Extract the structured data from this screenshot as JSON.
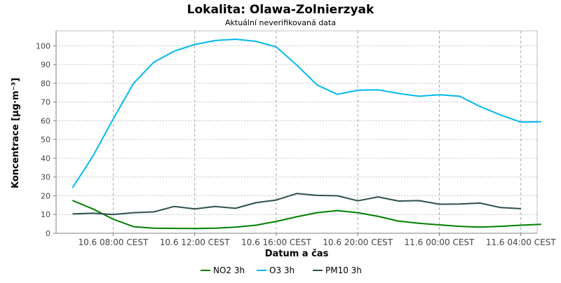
{
  "chart_data": {
    "type": "line",
    "title": "Lokalita: Olawa-Zolnierzyak",
    "subtitle": "Aktuální neverifikovaná data",
    "xlabel": "Datum a čas",
    "ylabel": "Koncentrace [µg·m⁻³]",
    "ylim": [
      0,
      108
    ],
    "yticks": [
      0,
      10,
      20,
      30,
      40,
      50,
      60,
      70,
      80,
      90,
      100
    ],
    "xlim_hours": [
      5.2,
      28.8
    ],
    "xticks": [
      {
        "hour": 8,
        "label": "10.6 08:00 CEST"
      },
      {
        "hour": 12,
        "label": "10.6 12:00 CEST"
      },
      {
        "hour": 16,
        "label": "10.6 16:00 CEST"
      },
      {
        "hour": 20,
        "label": "10.6 20:00 CEST"
      },
      {
        "hour": 24,
        "label": "11.6 00:00 CEST"
      },
      {
        "hour": 28,
        "label": "11.6 04:00 CEST"
      }
    ],
    "grid": true,
    "legend_position": "bottom",
    "x": [
      6,
      7,
      8,
      9,
      10,
      11,
      12,
      13,
      14,
      15,
      16,
      17,
      18,
      19,
      20,
      21,
      22,
      23,
      24,
      25,
      26,
      27,
      28,
      29
    ],
    "series": [
      {
        "name": "NO2 3h",
        "color": "#008000",
        "values": [
          17.5,
          13,
          7.5,
          3.5,
          2.7,
          2.6,
          2.5,
          2.7,
          3.3,
          4.3,
          6.3,
          8.8,
          11,
          12.1,
          11,
          9,
          6.5,
          5.3,
          4.5,
          3.7,
          3.3,
          3.7,
          4.3,
          4.8
        ]
      },
      {
        "name": "O3 3h",
        "color": "#00b8f0",
        "values": [
          24.2,
          41,
          61,
          80,
          91.3,
          97.2,
          100.7,
          102.8,
          103.5,
          102.4,
          99.4,
          89.8,
          79.1,
          74.1,
          76.3,
          76.5,
          74.6,
          73.1,
          73.9,
          73.1,
          67.6,
          63.1,
          59.3,
          59.5
        ]
      },
      {
        "name": "PM10 3h",
        "color": "#2f4f4f",
        "values": [
          10.3,
          10.7,
          10,
          11,
          11.4,
          14.3,
          13,
          14.3,
          13.3,
          16.3,
          17.7,
          21.2,
          20.2,
          20,
          17.3,
          19.4,
          17.2,
          17.4,
          15.5,
          15.6,
          16.1,
          13.7,
          13.1,
          null
        ]
      }
    ]
  }
}
